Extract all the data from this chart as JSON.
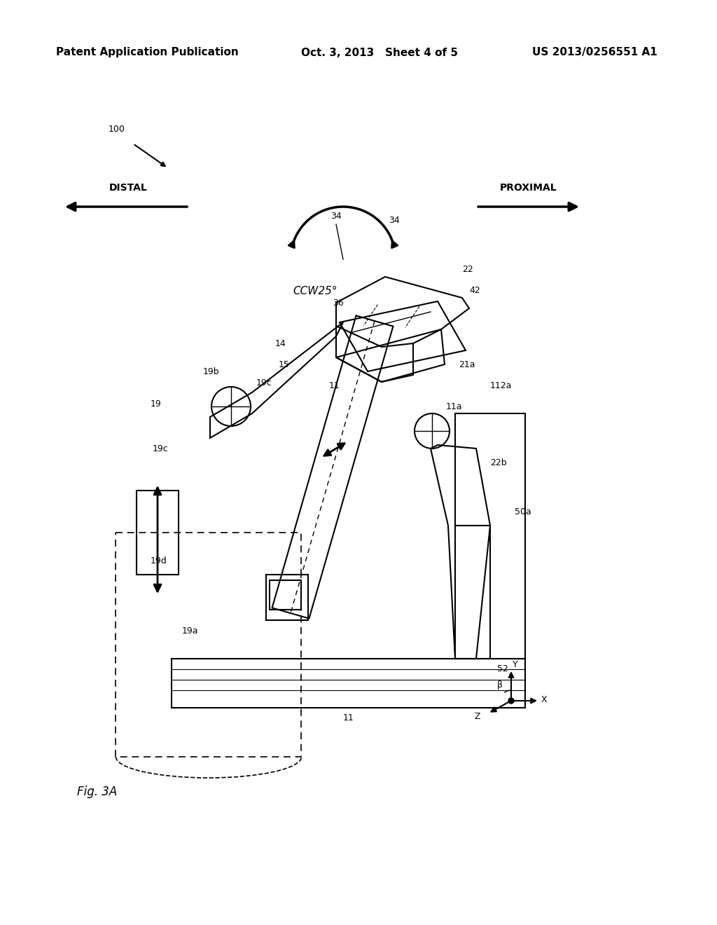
{
  "header_left": "Patent Application Publication",
  "header_center": "Oct. 3, 2013   Sheet 4 of 5",
  "header_right": "US 2013/0256551 A1",
  "figure_label": "Fig. 3A",
  "title_label": "100",
  "distal_label": "DISTAL",
  "proximal_label": "PROXIMAL",
  "ccw_label": "CCW25°",
  "ref_numbers": [
    "34",
    "22",
    "36",
    "42",
    "19b",
    "14",
    "15",
    "19c",
    "11",
    "21a",
    "112a",
    "19",
    "19c",
    "11a",
    "22b",
    "50a",
    "19d",
    "19a",
    "52",
    "11"
  ],
  "bg_color": "#ffffff",
  "line_color": "#000000",
  "font_size_header": 11,
  "font_size_label": 10,
  "font_size_ref": 9
}
